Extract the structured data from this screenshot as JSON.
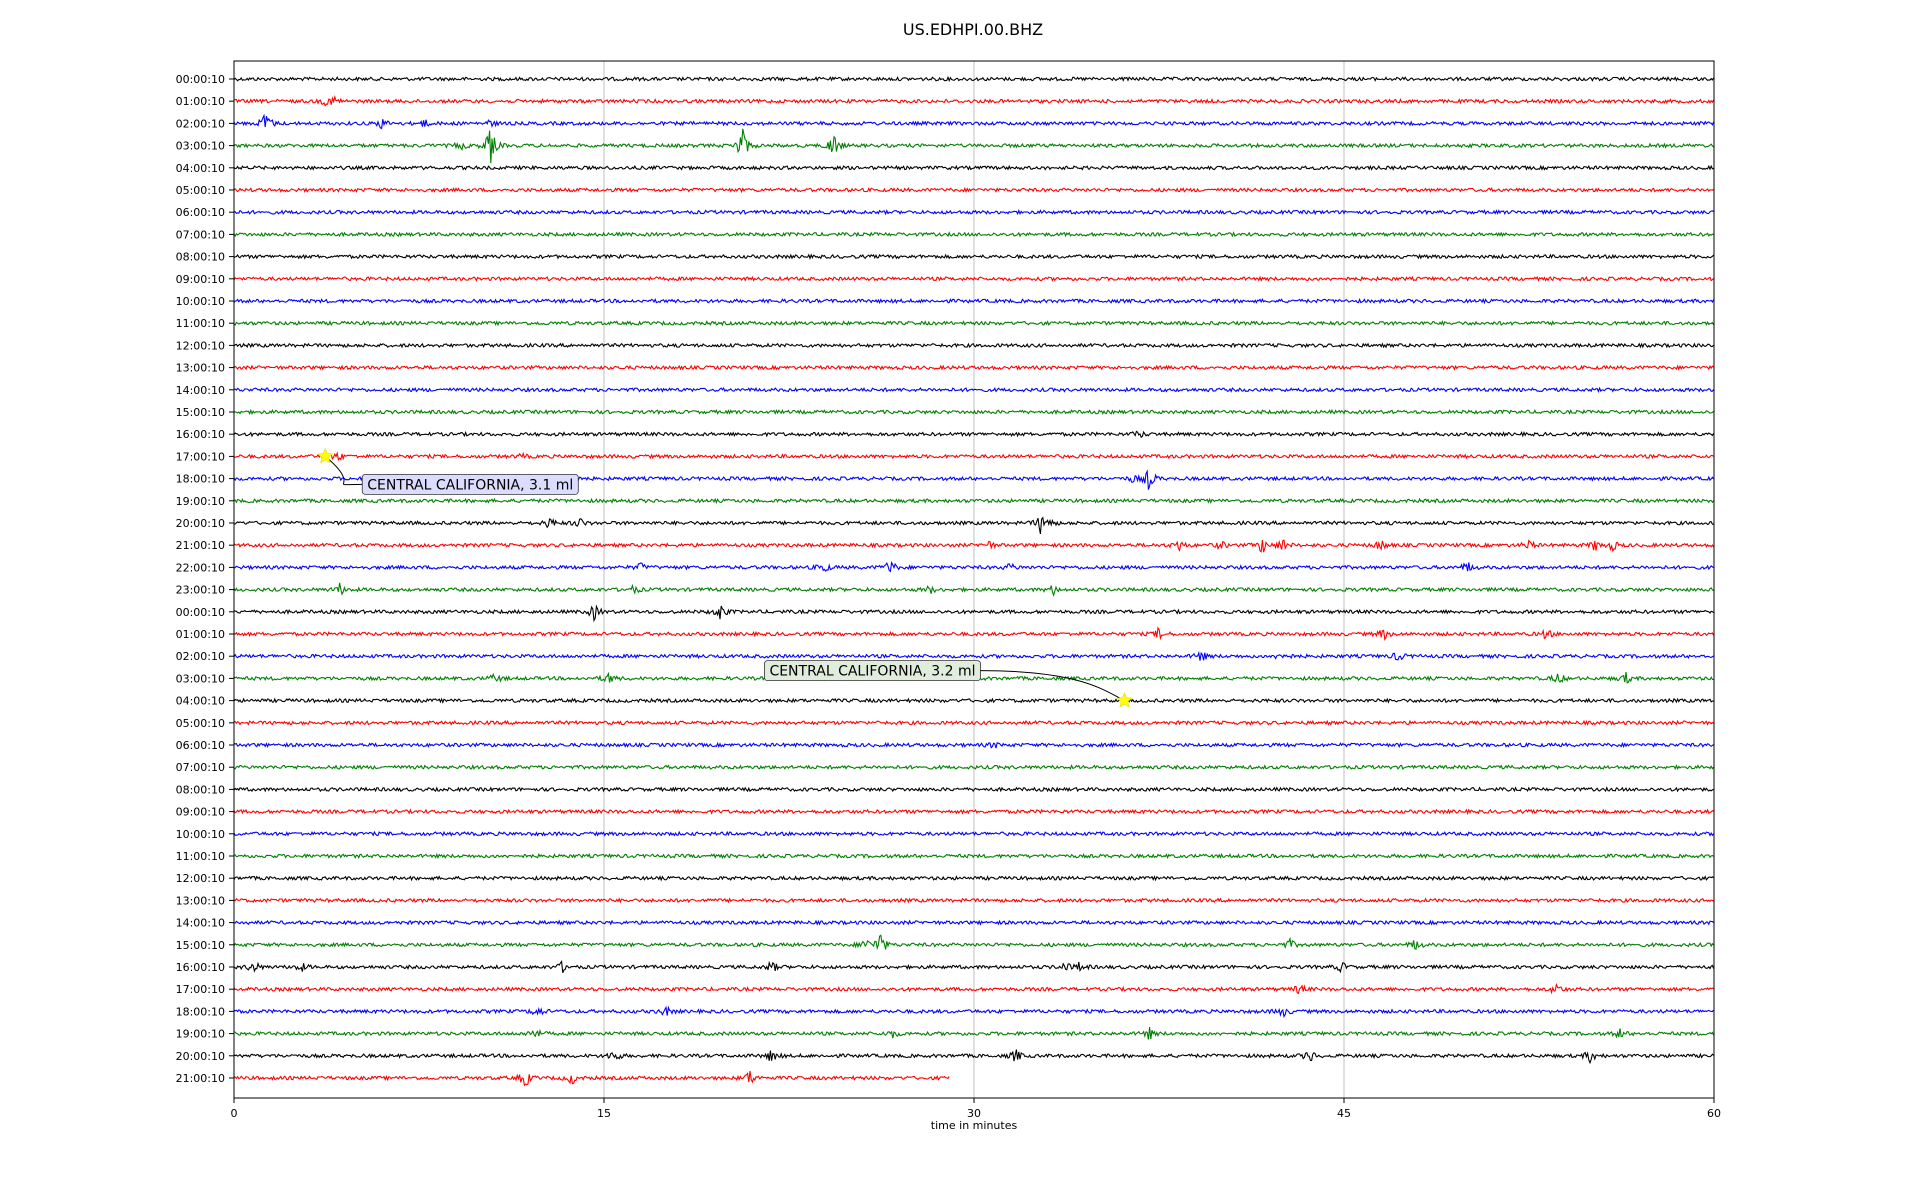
{
  "chart_data": {
    "type": "line",
    "title": "US.EDHPI.00.BHZ",
    "xlabel": "time in minutes",
    "ylabel": "",
    "xlim": [
      0,
      60
    ],
    "x_ticks": [
      "0",
      "15",
      "30",
      "45",
      "60"
    ],
    "grid_x": true,
    "row_labels": [
      "00:00:10",
      "01:00:10",
      "02:00:10",
      "03:00:10",
      "04:00:10",
      "05:00:10",
      "06:00:10",
      "07:00:10",
      "08:00:10",
      "09:00:10",
      "10:00:10",
      "11:00:10",
      "12:00:10",
      "13:00:10",
      "14:00:10",
      "15:00:10",
      "16:00:10",
      "17:00:10",
      "18:00:10",
      "19:00:10",
      "20:00:10",
      "21:00:10",
      "22:00:10",
      "23:00:10",
      "00:00:10",
      "01:00:10",
      "02:00:10",
      "03:00:10",
      "04:00:10",
      "05:00:10",
      "06:00:10",
      "07:00:10",
      "08:00:10",
      "09:00:10",
      "10:00:10",
      "11:00:10",
      "12:00:10",
      "13:00:10",
      "14:00:10",
      "15:00:10",
      "16:00:10",
      "17:00:10",
      "18:00:10",
      "19:00:10",
      "20:00:10",
      "21:00:10"
    ],
    "row_colors": [
      "#000000",
      "#ff0000",
      "#0000ff",
      "#008000"
    ],
    "last_row_end_minute": 29,
    "events": [
      {
        "row": 17,
        "minute": 3.7,
        "label": "CENTRAL CALIFORNIA, 3.1 ml"
      },
      {
        "row": 28,
        "minute": 36.1,
        "label": "CENTRAL CALIFORNIA, 3.2 ml"
      }
    ],
    "bursts": [
      [
        1,
        3.8,
        6
      ],
      [
        1,
        4.1,
        5
      ],
      [
        2,
        1.3,
        14
      ],
      [
        2,
        6.0,
        5
      ],
      [
        2,
        7.7,
        4
      ],
      [
        2,
        10.4,
        3
      ],
      [
        3,
        10.4,
        20
      ],
      [
        3,
        9.2,
        4
      ],
      [
        3,
        20.6,
        22
      ],
      [
        3,
        24.3,
        14
      ],
      [
        16,
        36.7,
        4
      ],
      [
        17,
        4.2,
        5
      ],
      [
        17,
        11.7,
        2
      ],
      [
        18,
        37.1,
        12
      ],
      [
        18,
        36.5,
        4
      ],
      [
        20,
        12.8,
        6
      ],
      [
        20,
        14.0,
        5
      ],
      [
        20,
        32.7,
        10
      ],
      [
        20,
        33.0,
        7
      ],
      [
        21,
        30.6,
        4
      ],
      [
        21,
        38.3,
        6
      ],
      [
        21,
        40.0,
        4
      ],
      [
        21,
        41.7,
        9
      ],
      [
        21,
        42.5,
        7
      ],
      [
        21,
        46.5,
        6
      ],
      [
        21,
        52.5,
        5
      ],
      [
        21,
        55.2,
        6
      ],
      [
        21,
        55.9,
        5
      ],
      [
        22,
        16.5,
        4
      ],
      [
        22,
        23.9,
        6
      ],
      [
        22,
        26.6,
        8
      ],
      [
        22,
        31.5,
        4
      ],
      [
        22,
        50.0,
        6
      ],
      [
        23,
        4.3,
        6
      ],
      [
        23,
        16.2,
        4
      ],
      [
        23,
        28.2,
        4
      ],
      [
        23,
        33.2,
        5
      ],
      [
        24,
        14.6,
        8
      ],
      [
        24,
        19.7,
        9
      ],
      [
        25,
        37.5,
        6
      ],
      [
        25,
        46.6,
        6
      ],
      [
        25,
        53.2,
        5
      ],
      [
        26,
        39.2,
        6
      ],
      [
        26,
        42.5,
        6
      ],
      [
        26,
        47.2,
        5
      ],
      [
        27,
        10.6,
        5
      ],
      [
        27,
        15.2,
        6
      ],
      [
        27,
        53.7,
        6
      ],
      [
        27,
        56.4,
        6
      ],
      [
        30,
        30.8,
        3
      ],
      [
        39,
        26.2,
        14
      ],
      [
        39,
        25.6,
        7
      ],
      [
        39,
        42.8,
        5
      ],
      [
        39,
        47.9,
        6
      ],
      [
        40,
        0.8,
        7
      ],
      [
        40,
        2.7,
        5
      ],
      [
        40,
        13.3,
        5
      ],
      [
        40,
        21.8,
        6
      ],
      [
        40,
        33.7,
        5
      ],
      [
        40,
        34.3,
        5
      ],
      [
        40,
        44.9,
        5
      ],
      [
        41,
        43.2,
        5
      ],
      [
        41,
        53.6,
        6
      ],
      [
        42,
        12.3,
        6
      ],
      [
        42,
        17.5,
        5
      ],
      [
        42,
        42.5,
        6
      ],
      [
        43,
        12.2,
        6
      ],
      [
        43,
        26.7,
        4
      ],
      [
        43,
        37.1,
        6
      ],
      [
        43,
        56.2,
        5
      ],
      [
        44,
        15.4,
        7
      ],
      [
        44,
        21.8,
        7
      ],
      [
        44,
        31.7,
        7
      ],
      [
        44,
        43.6,
        7
      ],
      [
        44,
        55.0,
        7
      ],
      [
        45,
        11.8,
        10
      ],
      [
        45,
        13.7,
        6
      ],
      [
        45,
        20.9,
        8
      ]
    ]
  }
}
